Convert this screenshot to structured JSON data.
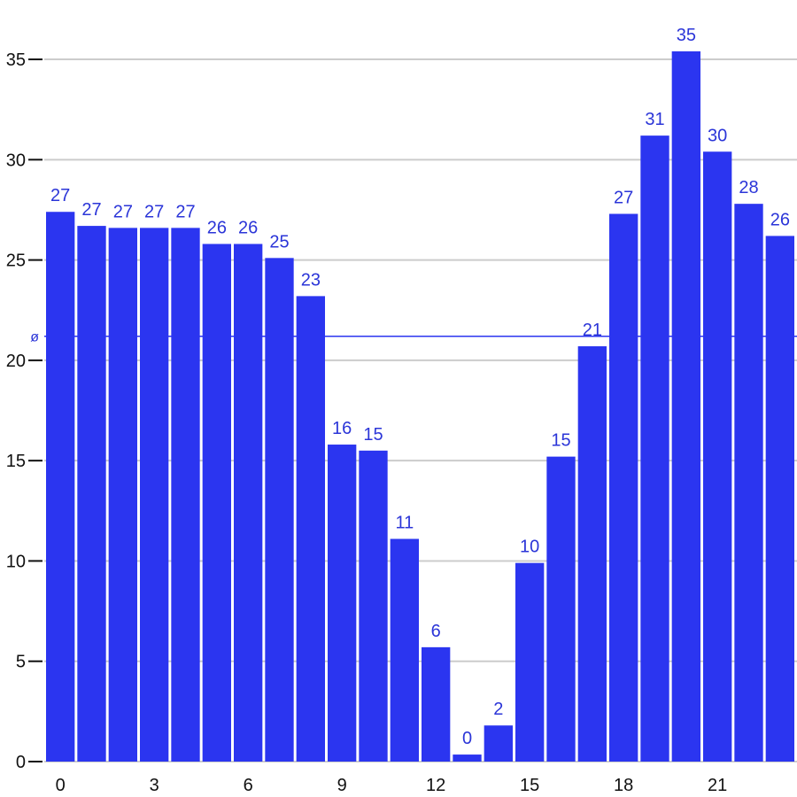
{
  "chart_data": {
    "type": "bar",
    "x": [
      0,
      1,
      2,
      3,
      4,
      5,
      6,
      7,
      8,
      9,
      10,
      11,
      12,
      13,
      14,
      15,
      16,
      17,
      18,
      19,
      20,
      21,
      22,
      23
    ],
    "values": [
      27.4,
      26.7,
      26.6,
      26.6,
      26.6,
      25.8,
      25.8,
      25.1,
      23.2,
      15.8,
      15.5,
      11.1,
      5.7,
      0.35,
      1.8,
      9.9,
      15.2,
      20.7,
      27.3,
      31.2,
      35.4,
      30.4,
      27.8,
      26.2
    ],
    "value_labels": [
      "27",
      "27",
      "27",
      "27",
      "27",
      "26",
      "26",
      "25",
      "23",
      "16",
      "15",
      "11",
      "6",
      "0",
      "2",
      "10",
      "15",
      "21",
      "27",
      "31",
      "35",
      "30",
      "28",
      "26"
    ],
    "x_ticks": [
      "0",
      "3",
      "6",
      "9",
      "12",
      "15",
      "18",
      "21"
    ],
    "y_ticks": [
      "0",
      "5",
      "10",
      "15",
      "20",
      "25",
      "30",
      "35"
    ],
    "ylim": [
      0,
      36.9
    ],
    "average": {
      "label": "ø",
      "value": 21.2
    },
    "grid": true,
    "colors": {
      "bar": "#2b35f0",
      "label": "#2b35d8",
      "grid": "#cccccc",
      "axis": "#111111"
    },
    "xlabel": "",
    "ylabel": ""
  }
}
